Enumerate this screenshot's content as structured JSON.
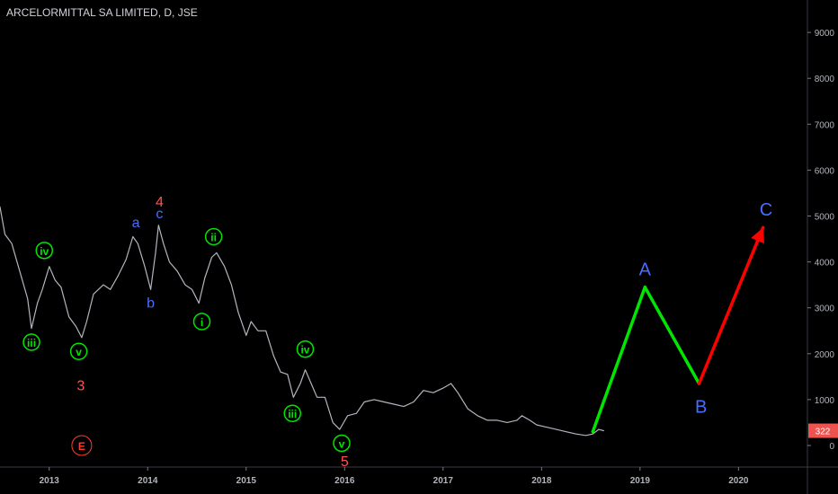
{
  "header": {
    "title": "ARCELORMITTAL SA LIMITED, D, JSE"
  },
  "price_badge": {
    "value": "322",
    "color": "#ef5350"
  },
  "chart_data": {
    "type": "line",
    "title": "ARCELORMITTAL SA LIMITED, D, JSE",
    "xlabel": "",
    "ylabel": "",
    "x_tick_labels": [
      "2013",
      "2014",
      "2015",
      "2016",
      "2017",
      "2018",
      "2019",
      "2020"
    ],
    "y_ticks": [
      0,
      1000,
      2000,
      3000,
      4000,
      5000,
      6000,
      7000,
      8000,
      9000
    ],
    "ylim": [
      -500,
      9500
    ],
    "xlim": [
      2012.5,
      2020.7
    ],
    "grid": false,
    "series": [
      {
        "role": "price",
        "color": "#b2b5be",
        "points": [
          [
            2012.5,
            5200
          ],
          [
            2012.55,
            4600
          ],
          [
            2012.62,
            4400
          ],
          [
            2012.7,
            3800
          ],
          [
            2012.78,
            3200
          ],
          [
            2012.82,
            2550
          ],
          [
            2012.88,
            3100
          ],
          [
            2012.93,
            3400
          ],
          [
            2013.0,
            3900
          ],
          [
            2013.06,
            3600
          ],
          [
            2013.12,
            3450
          ],
          [
            2013.2,
            2800
          ],
          [
            2013.27,
            2600
          ],
          [
            2013.33,
            2350
          ],
          [
            2013.38,
            2700
          ],
          [
            2013.45,
            3300
          ],
          [
            2013.55,
            3500
          ],
          [
            2013.62,
            3400
          ],
          [
            2013.7,
            3700
          ],
          [
            2013.78,
            4050
          ],
          [
            2013.85,
            4550
          ],
          [
            2013.9,
            4400
          ],
          [
            2013.97,
            3900
          ],
          [
            2014.03,
            3400
          ],
          [
            2014.08,
            4200
          ],
          [
            2014.11,
            4800
          ],
          [
            2014.16,
            4400
          ],
          [
            2014.22,
            4000
          ],
          [
            2014.3,
            3800
          ],
          [
            2014.38,
            3500
          ],
          [
            2014.45,
            3400
          ],
          [
            2014.52,
            3100
          ],
          [
            2014.58,
            3650
          ],
          [
            2014.65,
            4100
          ],
          [
            2014.7,
            4200
          ],
          [
            2014.78,
            3900
          ],
          [
            2014.85,
            3500
          ],
          [
            2014.92,
            2900
          ],
          [
            2015.0,
            2400
          ],
          [
            2015.05,
            2700
          ],
          [
            2015.12,
            2500
          ],
          [
            2015.2,
            2500
          ],
          [
            2015.28,
            1950
          ],
          [
            2015.35,
            1600
          ],
          [
            2015.42,
            1550
          ],
          [
            2015.48,
            1050
          ],
          [
            2015.55,
            1350
          ],
          [
            2015.6,
            1650
          ],
          [
            2015.67,
            1300
          ],
          [
            2015.72,
            1050
          ],
          [
            2015.8,
            1050
          ],
          [
            2015.88,
            500
          ],
          [
            2015.95,
            350
          ],
          [
            2016.03,
            650
          ],
          [
            2016.12,
            700
          ],
          [
            2016.2,
            950
          ],
          [
            2016.3,
            1000
          ],
          [
            2016.4,
            950
          ],
          [
            2016.5,
            900
          ],
          [
            2016.6,
            850
          ],
          [
            2016.7,
            950
          ],
          [
            2016.8,
            1200
          ],
          [
            2016.9,
            1150
          ],
          [
            2017.0,
            1250
          ],
          [
            2017.08,
            1350
          ],
          [
            2017.15,
            1150
          ],
          [
            2017.25,
            800
          ],
          [
            2017.35,
            650
          ],
          [
            2017.45,
            550
          ],
          [
            2017.55,
            550
          ],
          [
            2017.65,
            500
          ],
          [
            2017.75,
            550
          ],
          [
            2017.8,
            650
          ],
          [
            2017.88,
            550
          ],
          [
            2017.95,
            450
          ],
          [
            2018.05,
            400
          ],
          [
            2018.15,
            350
          ],
          [
            2018.25,
            300
          ],
          [
            2018.35,
            250
          ],
          [
            2018.45,
            220
          ],
          [
            2018.52,
            250
          ],
          [
            2018.58,
            350
          ],
          [
            2018.63,
            322
          ]
        ]
      },
      {
        "role": "projection",
        "color": "#00e600",
        "points": [
          [
            2018.52,
            300
          ],
          [
            2019.05,
            3450
          ],
          [
            2019.6,
            1350
          ]
        ]
      },
      {
        "role": "projection",
        "color": "#ff0000",
        "points": [
          [
            2019.6,
            1350
          ],
          [
            2020.25,
            4750
          ]
        ]
      }
    ],
    "annotations": [
      {
        "text": "iii",
        "x": 2012.82,
        "y": 2250,
        "color": "#00e600",
        "circle": true
      },
      {
        "text": "iv",
        "x": 2012.95,
        "y": 4250,
        "color": "#00e600",
        "circle": true
      },
      {
        "text": "v",
        "x": 2013.3,
        "y": 2050,
        "color": "#00e600",
        "circle": true
      },
      {
        "text": "3",
        "x": 2013.32,
        "y": 1300,
        "color": "#ff5252",
        "circle": false
      },
      {
        "text": "E",
        "x": 2013.33,
        "y": 0,
        "color": "#ff3b30",
        "circle": true
      },
      {
        "text": "a",
        "x": 2013.88,
        "y": 4850,
        "color": "#4a6cff",
        "circle": false
      },
      {
        "text": "b",
        "x": 2014.03,
        "y": 3100,
        "color": "#4a6cff",
        "circle": false
      },
      {
        "text": "c",
        "x": 2014.12,
        "y": 5050,
        "color": "#4a6cff",
        "circle": false
      },
      {
        "text": "4",
        "x": 2014.12,
        "y": 5300,
        "color": "#ff5252",
        "circle": false
      },
      {
        "text": "ii",
        "x": 2014.67,
        "y": 4550,
        "color": "#00e600",
        "circle": true
      },
      {
        "text": "i",
        "x": 2014.55,
        "y": 2700,
        "color": "#00e600",
        "circle": true
      },
      {
        "text": "iv",
        "x": 2015.6,
        "y": 2100,
        "color": "#00e600",
        "circle": true
      },
      {
        "text": "iii",
        "x": 2015.47,
        "y": 700,
        "color": "#00e600",
        "circle": true
      },
      {
        "text": "v",
        "x": 2015.97,
        "y": 50,
        "color": "#00e600",
        "circle": true
      },
      {
        "text": "5",
        "x": 2016.0,
        "y": -350,
        "color": "#ff5252",
        "circle": false
      },
      {
        "text": "A",
        "x": 2019.05,
        "y": 3850,
        "color": "#4a6cff",
        "circle": false
      },
      {
        "text": "B",
        "x": 2019.62,
        "y": 850,
        "color": "#4a6cff",
        "circle": false
      },
      {
        "text": "C",
        "x": 2020.28,
        "y": 5150,
        "color": "#4a6cff",
        "circle": false
      }
    ]
  }
}
